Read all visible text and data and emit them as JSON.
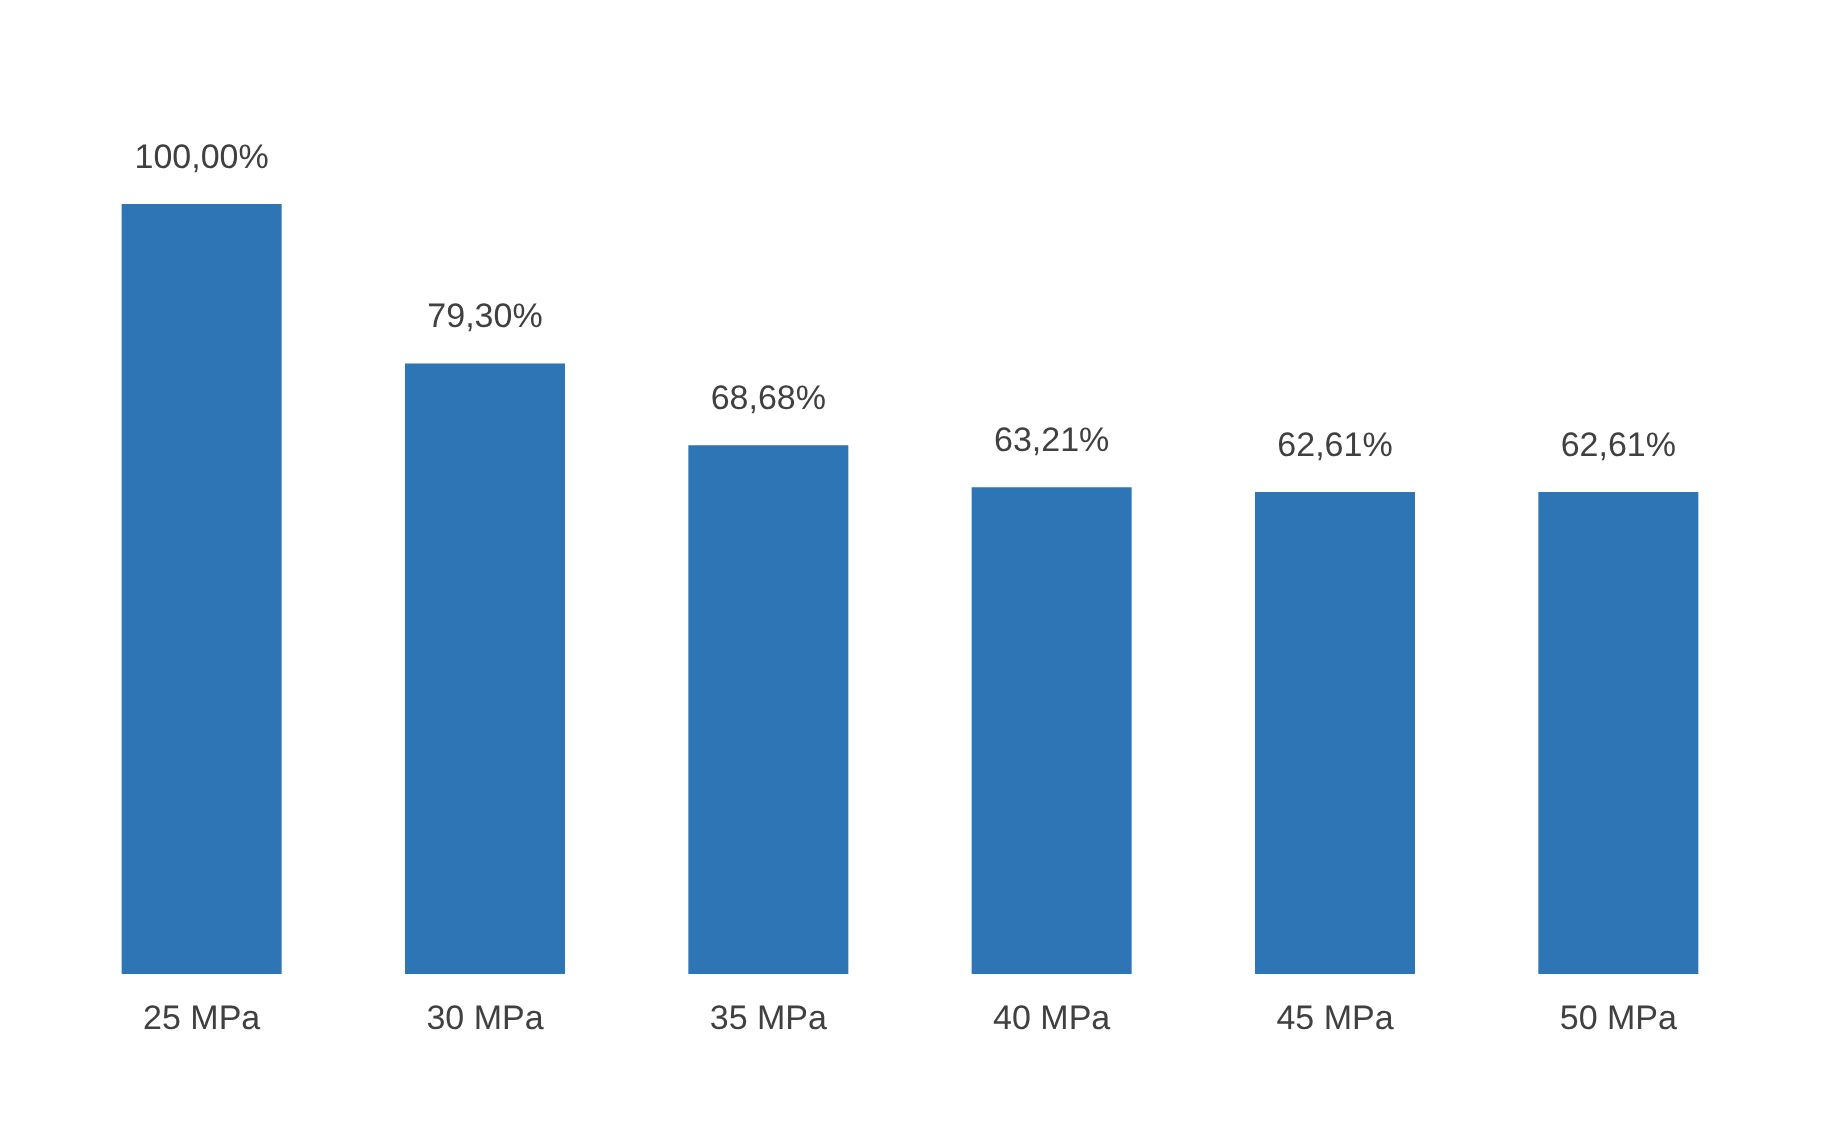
{
  "chart_data": {
    "type": "bar",
    "categories": [
      "25 MPa",
      "30 MPa",
      "35 MPa",
      "40 MPa",
      "45 MPa",
      "50 MPa"
    ],
    "values": [
      100.0,
      79.3,
      68.68,
      63.21,
      62.61,
      62.61
    ],
    "value_labels": [
      "100,00%",
      "79,30%",
      "68,68%",
      "63,21%",
      "62,61%",
      "62,61%"
    ],
    "color": "#2e75b6"
  }
}
